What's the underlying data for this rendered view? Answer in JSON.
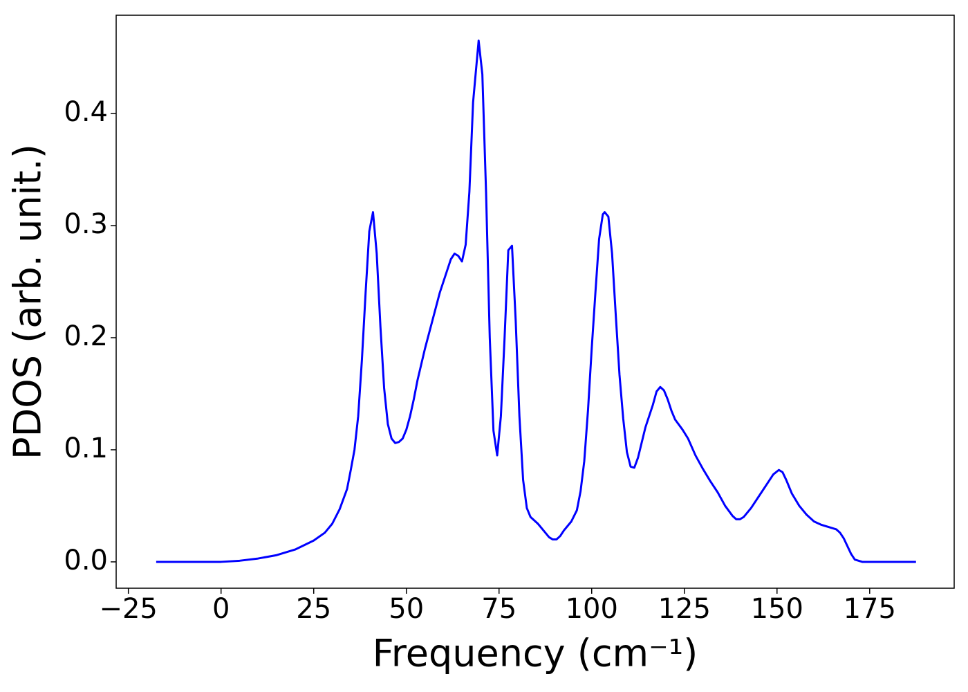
{
  "chart_data": {
    "type": "line",
    "xlabel": "Frequency (cm⁻¹)",
    "ylabel": "PDOS (arb. unit.)",
    "x": [
      -17.5,
      0,
      5,
      10,
      15,
      20,
      25,
      28,
      30,
      32,
      34,
      35,
      36,
      37,
      38,
      39,
      40,
      41,
      42,
      43,
      44,
      45,
      46,
      47,
      48,
      49,
      50,
      51,
      52,
      53,
      55,
      57,
      59,
      61,
      62,
      63,
      64,
      65,
      66,
      67,
      68,
      69.5,
      70.5,
      71.5,
      72.5,
      73.5,
      74.5,
      75.5,
      76.5,
      77.5,
      78.5,
      79.5,
      80.5,
      81.5,
      82.5,
      83.5,
      85.5,
      87.5,
      88.5,
      89.5,
      90.5,
      91.5,
      92.5,
      94.5,
      96,
      97,
      98,
      99,
      100,
      101,
      102,
      103,
      103.5,
      104.5,
      105.5,
      106.5,
      107.5,
      108.5,
      109.5,
      110.5,
      111.5,
      112.5,
      114.5,
      116.5,
      117.5,
      118.5,
      119.5,
      120.5,
      121.5,
      122.5,
      124.5,
      126,
      128,
      130,
      132,
      134,
      136,
      138,
      139,
      140,
      141,
      143,
      145,
      147,
      149,
      150.5,
      151.5,
      152.5,
      154,
      156,
      158,
      160,
      162,
      164,
      166,
      167,
      168,
      169,
      170,
      171,
      173,
      187.5
    ],
    "series": [
      {
        "name": "PDOS",
        "color": "#0000ff",
        "values": [
          0,
          0,
          0.001,
          0.003,
          0.006,
          0.011,
          0.019,
          0.026,
          0.034,
          0.047,
          0.065,
          0.082,
          0.1,
          0.13,
          0.18,
          0.24,
          0.295,
          0.312,
          0.275,
          0.21,
          0.155,
          0.123,
          0.11,
          0.106,
          0.107,
          0.11,
          0.118,
          0.13,
          0.145,
          0.162,
          0.19,
          0.215,
          0.24,
          0.26,
          0.27,
          0.275,
          0.273,
          0.268,
          0.283,
          0.33,
          0.41,
          0.465,
          0.435,
          0.33,
          0.2,
          0.117,
          0.095,
          0.13,
          0.2,
          0.278,
          0.282,
          0.215,
          0.13,
          0.073,
          0.048,
          0.04,
          0.034,
          0.026,
          0.022,
          0.02,
          0.02,
          0.023,
          0.028,
          0.036,
          0.046,
          0.063,
          0.09,
          0.135,
          0.19,
          0.24,
          0.288,
          0.31,
          0.312,
          0.308,
          0.275,
          0.22,
          0.167,
          0.128,
          0.098,
          0.085,
          0.084,
          0.093,
          0.12,
          0.14,
          0.152,
          0.156,
          0.153,
          0.145,
          0.135,
          0.127,
          0.118,
          0.11,
          0.095,
          0.083,
          0.072,
          0.062,
          0.05,
          0.041,
          0.038,
          0.038,
          0.04,
          0.048,
          0.058,
          0.068,
          0.078,
          0.082,
          0.08,
          0.073,
          0.061,
          0.05,
          0.042,
          0.036,
          0.033,
          0.031,
          0.029,
          0.026,
          0.021,
          0.014,
          0.007,
          0.002,
          0,
          0
        ]
      }
    ],
    "xlim": [
      -28.3,
      197.8
    ],
    "ylim": [
      -0.0235,
      0.4877
    ],
    "xticks": [
      {
        "value": -25,
        "label": "−25"
      },
      0,
      25,
      50,
      75,
      100,
      125,
      150,
      175
    ],
    "yticks": [
      {
        "value": 0,
        "label": "0.0"
      },
      0.1,
      0.2,
      0.3,
      0.4
    ],
    "grid": false
  }
}
